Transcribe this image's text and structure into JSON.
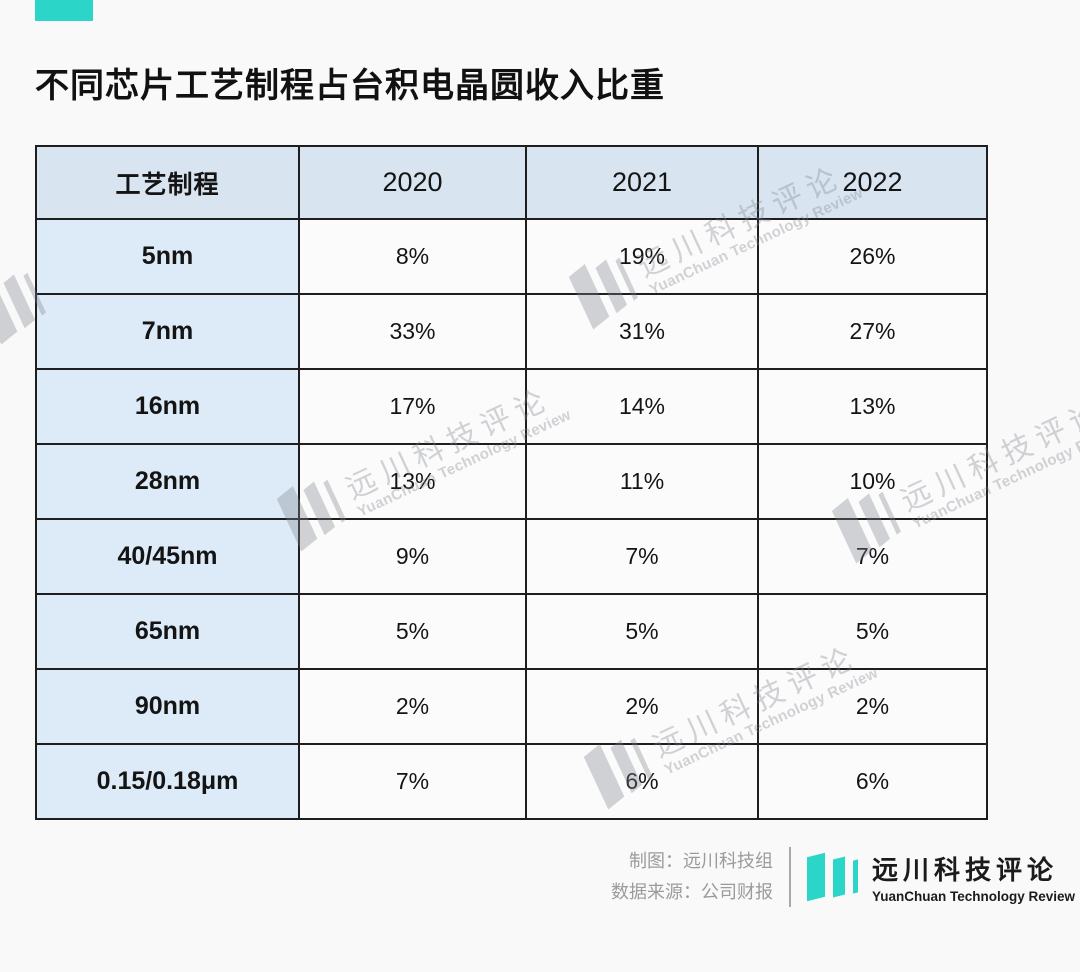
{
  "title": "不同芯片工艺制程占台积电晶圆收入比重",
  "colors": {
    "accent_teal": "#2bd6c9",
    "table_header_bg": "#d8e5f1",
    "row_header_bg": "#dcebf7",
    "cell_bg": "#fbfbfb",
    "border": "#1e1e1e",
    "page_bg": "#f9f9f9",
    "credit_text": "#9b9b9b",
    "watermark_gray": "#d9dadb"
  },
  "chart_data": {
    "type": "table",
    "title": "不同芯片工艺制程占台积电晶圆收入比重",
    "columns": [
      "工艺制程",
      "2020",
      "2021",
      "2022"
    ],
    "rows": [
      [
        "5nm",
        "8%",
        "19%",
        "26%"
      ],
      [
        "7nm",
        "33%",
        "31%",
        "27%"
      ],
      [
        "16nm",
        "17%",
        "14%",
        "13%"
      ],
      [
        "28nm",
        "13%",
        "11%",
        "10%"
      ],
      [
        "40/45nm",
        "9%",
        "7%",
        "7%"
      ],
      [
        "65nm",
        "5%",
        "5%",
        "5%"
      ],
      [
        "90nm",
        "2%",
        "2%",
        "2%"
      ],
      [
        "0.15/0.18μm",
        "7%",
        "6%",
        "6%"
      ]
    ]
  },
  "watermark": {
    "cn": "远川科技评论",
    "en": "YuanChuan Technology Review"
  },
  "footer": {
    "credit_line1": "制图：远川科技组",
    "credit_line2": "数据来源：公司财报",
    "logo_cn": "远川科技评论",
    "logo_en": "YuanChuan Technology Review"
  }
}
